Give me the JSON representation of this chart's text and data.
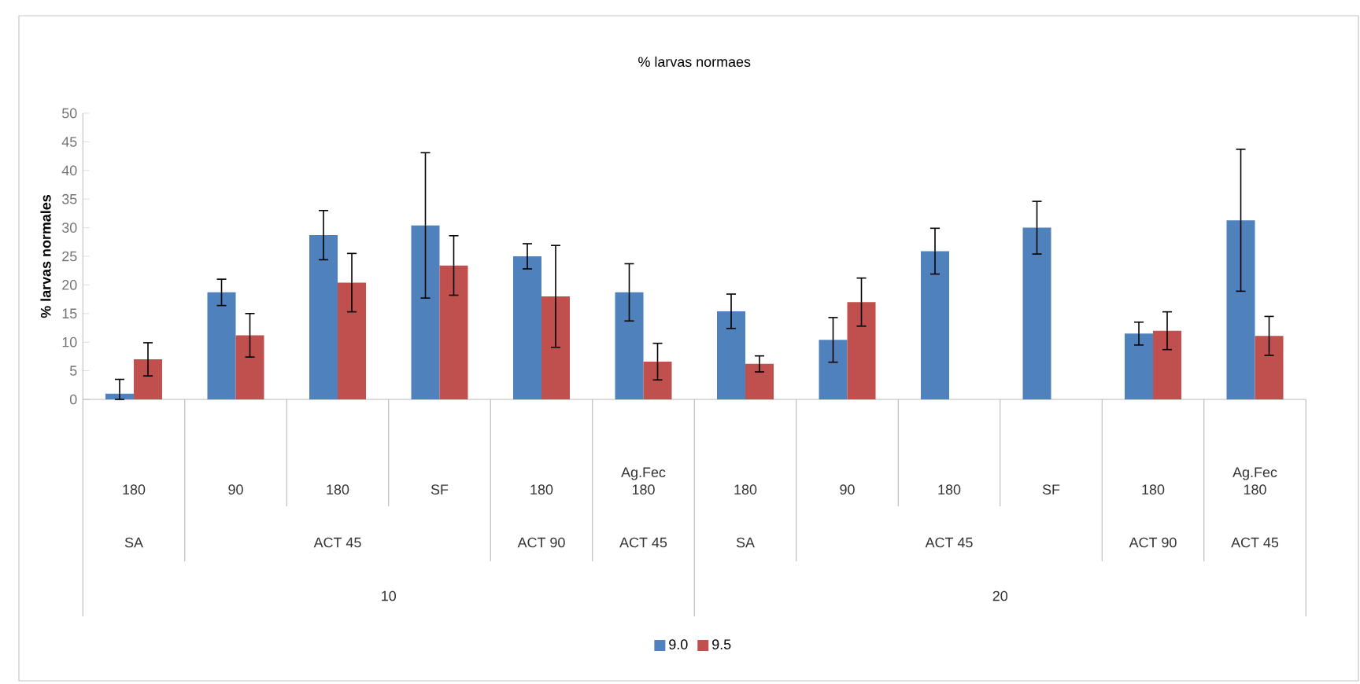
{
  "chart_data": {
    "type": "bar",
    "title": "% larvas normaes",
    "ylabel": "% larvas normales",
    "categories": [
      "180",
      "90",
      "180",
      "SF",
      "180",
      "Ag.Fec 180",
      "180",
      "90",
      "180",
      "SF",
      "180",
      "Ag.Fec 180"
    ],
    "series": [
      {
        "name": "9.0",
        "color": "#4f81bd",
        "values": [
          1.0,
          18.7,
          28.7,
          30.4,
          25.0,
          18.7,
          15.4,
          10.4,
          25.9,
          30.0,
          11.5,
          31.3
        ],
        "errors": [
          [
            0,
            3.5
          ],
          2.3,
          4.3,
          12.7,
          2.2,
          5.0,
          3.0,
          3.9,
          4.0,
          4.6,
          2.0,
          12.4
        ]
      },
      {
        "name": "9.5",
        "color": "#c0504d",
        "values": [
          7.0,
          11.2,
          20.4,
          23.4,
          18.0,
          6.6,
          6.2,
          17.0,
          null,
          null,
          12.0,
          11.1
        ],
        "errors": [
          2.9,
          3.8,
          5.1,
          5.2,
          8.9,
          3.2,
          1.4,
          4.2,
          null,
          null,
          3.3,
          3.4
        ]
      }
    ],
    "ylim": [
      0,
      50
    ],
    "yticks": [
      0,
      5,
      10,
      15,
      20,
      25,
      30,
      35,
      40,
      45,
      50
    ],
    "legend": "bottom",
    "annotations": [
      "SA",
      "ACT 45",
      "ACT 90",
      "ACT 45",
      "SA",
      "ACT 45",
      "ACT 90",
      "ACT 45",
      "10",
      "20"
    ]
  }
}
